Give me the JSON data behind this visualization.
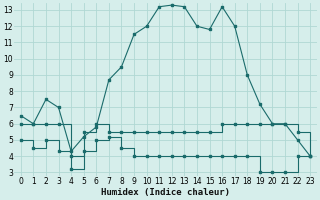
{
  "xlabel": "Humidex (Indice chaleur)",
  "bg_color": "#d6eeeb",
  "grid_color": "#b0d8d4",
  "line_color": "#1a6b6b",
  "xlim": [
    -0.5,
    23.5
  ],
  "ylim": [
    2.8,
    13.4
  ],
  "xticks": [
    0,
    1,
    2,
    3,
    4,
    5,
    6,
    7,
    8,
    9,
    10,
    11,
    12,
    13,
    14,
    15,
    16,
    17,
    18,
    19,
    20,
    21,
    22,
    23
  ],
  "yticks": [
    3,
    4,
    5,
    6,
    7,
    8,
    9,
    10,
    11,
    12,
    13
  ],
  "line1_x": [
    0,
    1,
    2,
    3,
    4,
    5,
    6,
    7,
    8,
    9,
    10,
    11,
    12,
    13,
    14,
    15,
    16,
    17,
    18,
    19,
    20,
    21,
    22,
    23
  ],
  "line1_y": [
    6.5,
    6.0,
    7.5,
    7.0,
    4.3,
    5.2,
    5.8,
    8.7,
    9.5,
    11.5,
    12.0,
    13.2,
    13.3,
    13.2,
    12.0,
    11.8,
    13.2,
    12.0,
    9.0,
    7.2,
    6.0,
    6.0,
    5.0,
    4.0
  ],
  "line2_x": [
    0,
    1,
    2,
    3,
    4,
    5,
    6,
    7,
    8,
    9,
    10,
    11,
    12,
    13,
    14,
    15,
    16,
    17,
    18,
    19,
    20,
    21,
    22,
    23
  ],
  "line2_y": [
    6.0,
    6.0,
    6.0,
    6.0,
    4.0,
    5.5,
    6.0,
    5.5,
    5.5,
    5.5,
    5.5,
    5.5,
    5.5,
    5.5,
    5.5,
    5.5,
    6.0,
    6.0,
    6.0,
    6.0,
    6.0,
    6.0,
    5.5,
    4.0
  ],
  "line3_x": [
    0,
    1,
    2,
    3,
    4,
    5,
    6,
    7,
    8,
    9,
    10,
    11,
    12,
    13,
    14,
    15,
    16,
    17,
    18,
    19,
    20,
    21,
    22,
    23
  ],
  "line3_y": [
    5.0,
    4.5,
    5.0,
    4.3,
    3.2,
    4.3,
    5.0,
    5.2,
    4.5,
    4.0,
    4.0,
    4.0,
    4.0,
    4.0,
    4.0,
    4.0,
    4.0,
    4.0,
    4.0,
    3.0,
    3.0,
    3.0,
    4.0,
    4.0
  ]
}
